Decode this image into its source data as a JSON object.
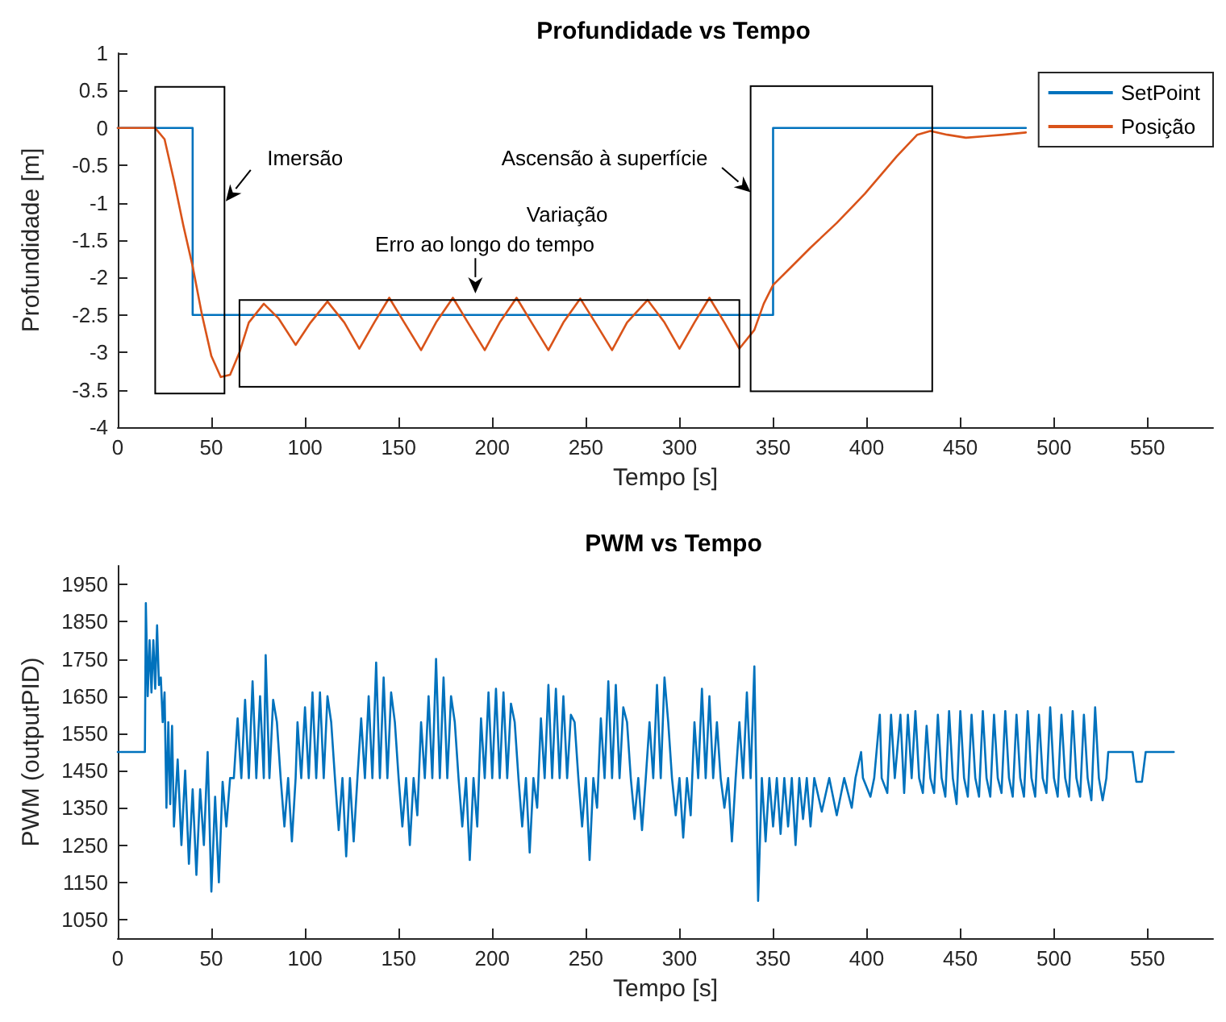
{
  "chart_data": [
    {
      "type": "line",
      "title": "Profundidade vs Tempo",
      "xlabel": "Tempo [s]",
      "ylabel": "Profundidade [m]",
      "xlim": [
        0,
        585
      ],
      "xticks": [
        0,
        50,
        100,
        150,
        200,
        250,
        300,
        350,
        400,
        450,
        500,
        550
      ],
      "ylim": [
        -4,
        1
      ],
      "yticks": [
        -4,
        -3.5,
        -3,
        -2.5,
        -2,
        -1.5,
        -1,
        -0.5,
        0,
        0.5,
        1
      ],
      "grid": false,
      "legend": "top right",
      "marker": "none",
      "series": [
        {
          "name": "SetPoint",
          "type": "step",
          "color": "#0072bd",
          "x": [
            0,
            40,
            350,
            485
          ],
          "values": [
            0,
            -2.5,
            0,
            0
          ]
        },
        {
          "name": "Posição",
          "color": "#d95319",
          "x": [
            0,
            20,
            25,
            30,
            35,
            40,
            45,
            50,
            55,
            60,
            65,
            70,
            78,
            86,
            95,
            103,
            112,
            121,
            129,
            137,
            145,
            153,
            162,
            170,
            179,
            187,
            196,
            204,
            213,
            221,
            230,
            238,
            247,
            255,
            264,
            272,
            283,
            292,
            300,
            308,
            316,
            324,
            332,
            340,
            345,
            350,
            360,
            370,
            384,
            399,
            416,
            427,
            434,
            443,
            453,
            463,
            473,
            485
          ],
          "values": [
            0,
            0,
            -0.15,
            -0.7,
            -1.3,
            -1.85,
            -2.5,
            -3.05,
            -3.33,
            -3.3,
            -3.0,
            -2.6,
            -2.35,
            -2.55,
            -2.9,
            -2.6,
            -2.32,
            -2.6,
            -2.95,
            -2.6,
            -2.27,
            -2.6,
            -2.97,
            -2.6,
            -2.27,
            -2.6,
            -2.97,
            -2.6,
            -2.27,
            -2.6,
            -2.97,
            -2.6,
            -2.28,
            -2.6,
            -2.97,
            -2.6,
            -2.3,
            -2.6,
            -2.95,
            -2.6,
            -2.27,
            -2.6,
            -2.95,
            -2.7,
            -2.35,
            -2.1,
            -1.85,
            -1.6,
            -1.27,
            -0.88,
            -0.38,
            -0.09,
            -0.04,
            -0.09,
            -0.13,
            -0.11,
            -0.09,
            -0.06
          ]
        }
      ],
      "annotations": [
        "Imersão",
        "Ascensão à superfície",
        "Variação",
        "Erro ao longo do tempo"
      ]
    },
    {
      "type": "line",
      "title": "PWM vs Tempo",
      "xlabel": "Tempo [s]",
      "ylabel": "PWM (outputPID)",
      "xlim": [
        0,
        585
      ],
      "xticks": [
        0,
        50,
        100,
        150,
        200,
        250,
        300,
        350,
        400,
        450,
        500,
        550
      ],
      "ylim": [
        1000,
        2000
      ],
      "yticks": [
        1050,
        1150,
        1250,
        1350,
        1450,
        1550,
        1650,
        1750,
        1850,
        1950
      ],
      "grid": false,
      "legend": false,
      "marker": "none",
      "series": [
        {
          "color": "#0072bd",
          "x": [
            0,
            14.5,
            15,
            16,
            17,
            18,
            19,
            20,
            21,
            22,
            23,
            24,
            25,
            26,
            27,
            28,
            29,
            30,
            32,
            34,
            36,
            38,
            40,
            42,
            44,
            46,
            48,
            50,
            52,
            54,
            56,
            58,
            60,
            62,
            64,
            66,
            68,
            70,
            72,
            74,
            76,
            78,
            79,
            81,
            83,
            85,
            87,
            89,
            91,
            93,
            95,
            96,
            98,
            100,
            102,
            104,
            106,
            108,
            110,
            112,
            114,
            116,
            118,
            120,
            122,
            124,
            126,
            128,
            130,
            132,
            134,
            136,
            138,
            140,
            142,
            144,
            146,
            148,
            150,
            152,
            154,
            156,
            158,
            160,
            162,
            164,
            166,
            168,
            170,
            172,
            174,
            176,
            178,
            180,
            182,
            184,
            186,
            188,
            190,
            192,
            194,
            196,
            198,
            200,
            202,
            204,
            206,
            208,
            210,
            212,
            214,
            216,
            218,
            220,
            222,
            224,
            226,
            228,
            230,
            232,
            234,
            236,
            238,
            240,
            242,
            244,
            246,
            248,
            250,
            252,
            254,
            256,
            258,
            260,
            262,
            264,
            266,
            268,
            270,
            272,
            274,
            276,
            278,
            280,
            282,
            284,
            286,
            288,
            290,
            292,
            294,
            296,
            298,
            300,
            302,
            304,
            306,
            308,
            310,
            312,
            314,
            316,
            318,
            320,
            322,
            324,
            326,
            328,
            330,
            332,
            334,
            336,
            338,
            340,
            341,
            342,
            344,
            346,
            348,
            350,
            352,
            354,
            356,
            358,
            360,
            362,
            364,
            366,
            368,
            370,
            372,
            376,
            380,
            384,
            388,
            392,
            394,
            397,
            398,
            402,
            404,
            407,
            408,
            411,
            413,
            415,
            418,
            420,
            422,
            424,
            426,
            428,
            430,
            432,
            434,
            436,
            438,
            440,
            442,
            444,
            446,
            448,
            450,
            452,
            454,
            456,
            458,
            460,
            462,
            464,
            466,
            468,
            470,
            472,
            474,
            476,
            478,
            480,
            482,
            484,
            486,
            488,
            490,
            492,
            494,
            496,
            498,
            500,
            502,
            504,
            506,
            508,
            510,
            512,
            514,
            516,
            518,
            520,
            522,
            524,
            526,
            528,
            529,
            542,
            544,
            547,
            549,
            564
          ],
          "values": [
            1500,
            1500,
            1900,
            1650,
            1800,
            1660,
            1800,
            1670,
            1840,
            1680,
            1700,
            1580,
            1660,
            1350,
            1580,
            1360,
            1570,
            1300,
            1480,
            1250,
            1450,
            1200,
            1400,
            1170,
            1400,
            1250,
            1500,
            1125,
            1380,
            1150,
            1420,
            1300,
            1430,
            1430,
            1590,
            1430,
            1640,
            1430,
            1690,
            1430,
            1650,
            1430,
            1760,
            1430,
            1640,
            1580,
            1430,
            1300,
            1430,
            1260,
            1430,
            1580,
            1430,
            1620,
            1430,
            1660,
            1430,
            1660,
            1430,
            1650,
            1580,
            1430,
            1290,
            1430,
            1220,
            1430,
            1260,
            1430,
            1590,
            1430,
            1650,
            1430,
            1740,
            1430,
            1700,
            1430,
            1660,
            1580,
            1430,
            1300,
            1430,
            1250,
            1430,
            1330,
            1580,
            1430,
            1650,
            1430,
            1750,
            1430,
            1700,
            1430,
            1650,
            1580,
            1430,
            1300,
            1430,
            1210,
            1430,
            1300,
            1590,
            1430,
            1660,
            1430,
            1670,
            1430,
            1660,
            1430,
            1630,
            1580,
            1430,
            1300,
            1430,
            1230,
            1430,
            1350,
            1590,
            1430,
            1680,
            1430,
            1670,
            1430,
            1650,
            1430,
            1600,
            1580,
            1430,
            1300,
            1430,
            1210,
            1430,
            1350,
            1590,
            1430,
            1690,
            1430,
            1680,
            1430,
            1620,
            1580,
            1430,
            1320,
            1430,
            1290,
            1430,
            1580,
            1430,
            1680,
            1430,
            1700,
            1580,
            1430,
            1330,
            1430,
            1270,
            1430,
            1330,
            1580,
            1430,
            1670,
            1430,
            1650,
            1430,
            1580,
            1430,
            1350,
            1430,
            1260,
            1430,
            1580,
            1430,
            1660,
            1430,
            1730,
            1430,
            1100,
            1430,
            1260,
            1430,
            1300,
            1430,
            1280,
            1430,
            1300,
            1430,
            1250,
            1430,
            1320,
            1430,
            1300,
            1430,
            1340,
            1430,
            1330,
            1430,
            1350,
            1430,
            1500,
            1430,
            1380,
            1430,
            1600,
            1430,
            1390,
            1600,
            1430,
            1600,
            1390,
            1600,
            1430,
            1610,
            1430,
            1390,
            1570,
            1430,
            1390,
            1600,
            1430,
            1380,
            1610,
            1430,
            1360,
            1610,
            1430,
            1380,
            1600,
            1430,
            1380,
            1610,
            1430,
            1380,
            1600,
            1430,
            1390,
            1610,
            1430,
            1380,
            1600,
            1430,
            1380,
            1610,
            1430,
            1380,
            1600,
            1430,
            1390,
            1620,
            1430,
            1380,
            1600,
            1430,
            1380,
            1610,
            1430,
            1380,
            1600,
            1430,
            1370,
            1620,
            1430,
            1370,
            1430,
            1500,
            1500,
            1420,
            1420,
            1500,
            1500
          ]
        }
      ]
    }
  ]
}
